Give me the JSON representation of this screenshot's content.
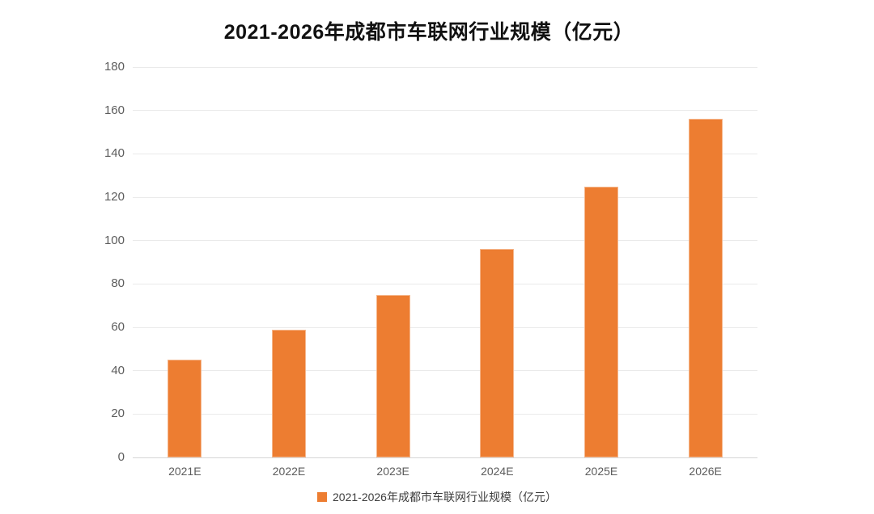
{
  "title": "2021-2026年成都市车联网行业规模（亿元）",
  "legend": {
    "label": "2021-2026年成都市车联网行业规模（亿元）",
    "marker_color": "#ED7D31"
  },
  "colors": {
    "bar": "#ED7D31",
    "grid": "#EAEAEA",
    "axis_line": "#D6D6D6",
    "tick_text": "#5C5C5C",
    "title_text": "#111111",
    "background": "#FFFFFF"
  },
  "chart_data": {
    "type": "bar",
    "categories": [
      "2021E",
      "2022E",
      "2023E",
      "2024E",
      "2025E",
      "2026E"
    ],
    "values": [
      45,
      59,
      75,
      96,
      125,
      156
    ],
    "title": "2021-2026年成都市车联网行业规模（亿元）",
    "xlabel": "",
    "ylabel": "",
    "ylim": [
      0,
      180
    ],
    "ytick_step": 20,
    "yticks": [
      0,
      20,
      40,
      60,
      80,
      100,
      120,
      140,
      160,
      180
    ],
    "grid": true,
    "legend_position": "bottom"
  }
}
